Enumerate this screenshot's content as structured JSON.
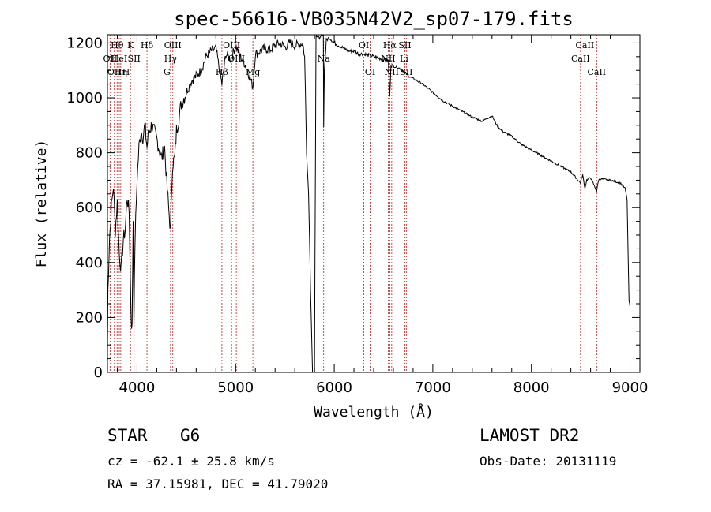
{
  "chart_data": {
    "type": "line",
    "title": "spec-56616-VB035N42V2_sp07-179.fits",
    "xlabel": "Wavelength (Å)",
    "ylabel": "Flux (relative)",
    "xlim": [
      3700,
      9100
    ],
    "ylim": [
      0,
      1230
    ],
    "grid": false,
    "x_ticks": [
      4000,
      5000,
      6000,
      7000,
      8000,
      9000
    ],
    "y_ticks": [
      0,
      200,
      400,
      600,
      800,
      1000,
      1200
    ],
    "series": [
      {
        "name": "flux",
        "color": "#000000",
        "points": [
          [
            3700,
            80
          ],
          [
            3705,
            300
          ],
          [
            3720,
            480
          ],
          [
            3740,
            600
          ],
          [
            3760,
            680
          ],
          [
            3780,
            520
          ],
          [
            3800,
            620
          ],
          [
            3820,
            430
          ],
          [
            3840,
            380
          ],
          [
            3860,
            480
          ],
          [
            3880,
            520
          ],
          [
            3900,
            640
          ],
          [
            3920,
            580
          ],
          [
            3940,
            200
          ],
          [
            3950,
            160
          ],
          [
            3960,
            560
          ],
          [
            3968,
            180
          ],
          [
            3980,
            480
          ],
          [
            4000,
            700
          ],
          [
            4020,
            820
          ],
          [
            4040,
            880
          ],
          [
            4060,
            860
          ],
          [
            4080,
            900
          ],
          [
            4101,
            820
          ],
          [
            4120,
            880
          ],
          [
            4150,
            900
          ],
          [
            4200,
            850
          ],
          [
            4250,
            780
          ],
          [
            4280,
            820
          ],
          [
            4300,
            700
          ],
          [
            4320,
            600
          ],
          [
            4340,
            520
          ],
          [
            4360,
            760
          ],
          [
            4383,
            780
          ],
          [
            4400,
            880
          ],
          [
            4450,
            980
          ],
          [
            4500,
            1020
          ],
          [
            4550,
            1060
          ],
          [
            4600,
            1080
          ],
          [
            4650,
            1100
          ],
          [
            4700,
            1150
          ],
          [
            4750,
            1170
          ],
          [
            4800,
            1180
          ],
          [
            4861,
            1050
          ],
          [
            4900,
            1160
          ],
          [
            4950,
            1140
          ],
          [
            5000,
            1190
          ],
          [
            5050,
            1150
          ],
          [
            5100,
            1120
          ],
          [
            5150,
            1070
          ],
          [
            5175,
            1040
          ],
          [
            5200,
            1160
          ],
          [
            5250,
            1170
          ],
          [
            5300,
            1180
          ],
          [
            5350,
            1175
          ],
          [
            5400,
            1190
          ],
          [
            5450,
            1200
          ],
          [
            5500,
            1185
          ],
          [
            5550,
            1200
          ],
          [
            5600,
            1190
          ],
          [
            5650,
            1195
          ],
          [
            5680,
            1200
          ],
          [
            5700,
            1150
          ],
          [
            5720,
            800
          ],
          [
            5740,
            650
          ],
          [
            5760,
            300
          ],
          [
            5780,
            0
          ],
          [
            5800,
            0
          ],
          [
            5815,
            1220
          ],
          [
            5830,
            1230
          ],
          [
            5850,
            1210
          ],
          [
            5870,
            1230
          ],
          [
            5890,
            1240
          ],
          [
            5893,
            900
          ],
          [
            5900,
            1100
          ],
          [
            5920,
            1210
          ],
          [
            5950,
            1220
          ],
          [
            6000,
            1200
          ],
          [
            6050,
            1190
          ],
          [
            6100,
            1180
          ],
          [
            6150,
            1170
          ],
          [
            6200,
            1170
          ],
          [
            6250,
            1160
          ],
          [
            6300,
            1160
          ],
          [
            6350,
            1155
          ],
          [
            6400,
            1150
          ],
          [
            6450,
            1145
          ],
          [
            6500,
            1140
          ],
          [
            6550,
            1135
          ],
          [
            6563,
            1000
          ],
          [
            6575,
            1120
          ],
          [
            6600,
            1115
          ],
          [
            6650,
            1110
          ],
          [
            6700,
            1100
          ],
          [
            6750,
            1080
          ],
          [
            6800,
            1070
          ],
          [
            6900,
            1050
          ],
          [
            7000,
            1020
          ],
          [
            7100,
            990
          ],
          [
            7200,
            970
          ],
          [
            7300,
            950
          ],
          [
            7400,
            930
          ],
          [
            7500,
            915
          ],
          [
            7600,
            935
          ],
          [
            7650,
            900
          ],
          [
            7700,
            880
          ],
          [
            7800,
            860
          ],
          [
            7900,
            830
          ],
          [
            8000,
            810
          ],
          [
            8100,
            790
          ],
          [
            8200,
            770
          ],
          [
            8300,
            750
          ],
          [
            8400,
            730
          ],
          [
            8498,
            690
          ],
          [
            8520,
            720
          ],
          [
            8542,
            670
          ],
          [
            8560,
            700
          ],
          [
            8600,
            710
          ],
          [
            8662,
            660
          ],
          [
            8680,
            700
          ],
          [
            8700,
            705
          ],
          [
            8800,
            700
          ],
          [
            8900,
            690
          ],
          [
            8950,
            670
          ],
          [
            8970,
            630
          ],
          [
            8990,
            260
          ],
          [
            9000,
            240
          ]
        ]
      }
    ],
    "lines": [
      {
        "wavelength": 3727,
        "label": "OII",
        "row": 2
      },
      {
        "wavelength": 3770,
        "label": "OII",
        "row": 3
      },
      {
        "wavelength": 3798,
        "label": "Hθ",
        "row": 1
      },
      {
        "wavelength": 3820,
        "label": "HeI",
        "row": 2
      },
      {
        "wavelength": 3835,
        "label": "Hη",
        "row": 3
      },
      {
        "wavelength": 3889,
        "label": "H",
        "row": 3
      },
      {
        "wavelength": 3934,
        "label": "K",
        "row": 1
      },
      {
        "wavelength": 3970,
        "label": "SII",
        "row": 2
      },
      {
        "wavelength": 4101,
        "label": "Hδ",
        "row": 1
      },
      {
        "wavelength": 4304,
        "label": "G",
        "row": 3
      },
      {
        "wavelength": 4340,
        "label": "Hγ",
        "row": 2
      },
      {
        "wavelength": 4363,
        "label": "OIII",
        "row": 1
      },
      {
        "wavelength": 4861,
        "label": "Hβ",
        "row": 3
      },
      {
        "wavelength": 4959,
        "label": "OIII",
        "row": 1
      },
      {
        "wavelength": 5007,
        "label": "OIII",
        "row": 2
      },
      {
        "wavelength": 5175,
        "label": "Mg",
        "row": 3
      },
      {
        "wavelength": 5893,
        "label": "Na",
        "row": 2
      },
      {
        "wavelength": 6300,
        "label": "OI",
        "row": 1
      },
      {
        "wavelength": 6364,
        "label": "OI",
        "row": 3
      },
      {
        "wavelength": 6548,
        "label": "NII",
        "row": 2
      },
      {
        "wavelength": 6563,
        "label": "Hα",
        "row": 1
      },
      {
        "wavelength": 6583,
        "label": "NII",
        "row": 3
      },
      {
        "wavelength": 6708,
        "label": "Li",
        "row": 2
      },
      {
        "wavelength": 6716,
        "label": "SII",
        "row": 1
      },
      {
        "wavelength": 6731,
        "label": "SII",
        "row": 3
      },
      {
        "wavelength": 8498,
        "label": "CaII",
        "row": 2
      },
      {
        "wavelength": 8542,
        "label": "CaII",
        "row": 1
      },
      {
        "wavelength": 8662,
        "label": "CaII",
        "row": 3
      }
    ]
  },
  "info": {
    "object_class": "STAR",
    "subclass": "G6",
    "survey": "LAMOST DR2",
    "redshift": "cz = -62.1 ± 25.8 km/s",
    "obs_date": "Obs-Date: 20131119",
    "coords": "RA =  37.15981, DEC =  41.79020"
  }
}
